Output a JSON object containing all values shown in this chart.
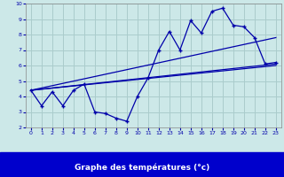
{
  "title": "Graphe des températures (°c)",
  "bg_color": "#cce8e8",
  "grid_color": "#aacccc",
  "line_color": "#0000aa",
  "xlabel_bg": "#0000cc",
  "xlabel_fg": "#ffffff",
  "xlim": [
    -0.5,
    23.5
  ],
  "ylim": [
    2,
    10
  ],
  "xticks": [
    0,
    1,
    2,
    3,
    4,
    5,
    6,
    7,
    8,
    9,
    10,
    11,
    12,
    13,
    14,
    15,
    16,
    17,
    18,
    19,
    20,
    21,
    22,
    23
  ],
  "yticks": [
    2,
    3,
    4,
    5,
    6,
    7,
    8,
    9,
    10
  ],
  "series1_x": [
    0,
    1,
    2,
    3,
    4,
    5,
    6,
    7,
    8,
    9,
    10,
    11,
    12,
    13,
    14,
    15,
    16,
    17,
    18,
    19,
    20,
    21,
    22,
    23
  ],
  "series1_y": [
    4.4,
    3.4,
    4.3,
    3.4,
    4.4,
    4.8,
    3.0,
    2.9,
    2.6,
    2.4,
    4.0,
    5.2,
    7.0,
    8.2,
    7.0,
    8.9,
    8.1,
    9.5,
    9.7,
    8.6,
    8.5,
    7.8,
    6.1,
    6.2
  ],
  "trend1_x": [
    0,
    23
  ],
  "trend1_y": [
    4.4,
    6.1
  ],
  "trend2_x": [
    0,
    23
  ],
  "trend2_y": [
    4.4,
    7.8
  ],
  "trend3_x": [
    0,
    23
  ],
  "trend3_y": [
    4.4,
    6.0
  ]
}
